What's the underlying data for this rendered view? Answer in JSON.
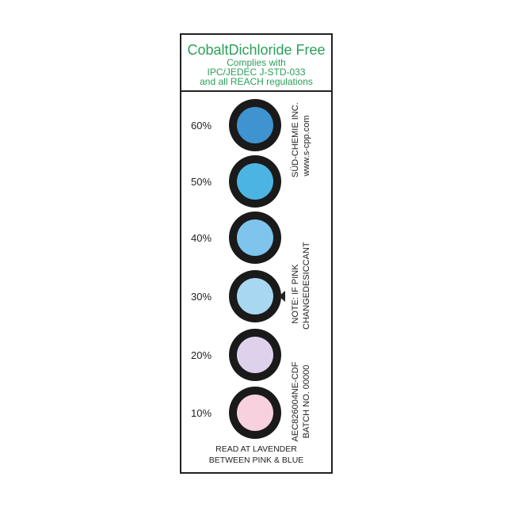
{
  "header": {
    "title": "CobaltDichloride Free",
    "line1": "Complies with",
    "line2": "IPC/JEDEC J-STD-033",
    "line3": "and all REACH regulations"
  },
  "spots": [
    {
      "label": "60%",
      "color": "#3f93d0"
    },
    {
      "label": "50%",
      "color": "#4cb4e2"
    },
    {
      "label": "40%",
      "color": "#7ec4ec"
    },
    {
      "label": "30%",
      "color": "#a8d7f1"
    },
    {
      "label": "20%",
      "color": "#ddd1ec"
    },
    {
      "label": "10%",
      "color": "#f7d1dd"
    }
  ],
  "side": {
    "maker": "SÜD-CHEMIE INC.",
    "web": "www.s-cpp.com",
    "note1": "NOTE: IF PINK",
    "note2": "CHANGEDESICCANT",
    "part": "AEC826004NE-CDF",
    "batch": "BATCH NO. 00000"
  },
  "footer": {
    "line1": "READ AT LAVENDER",
    "line2": "BETWEEN PINK & BLUE"
  }
}
